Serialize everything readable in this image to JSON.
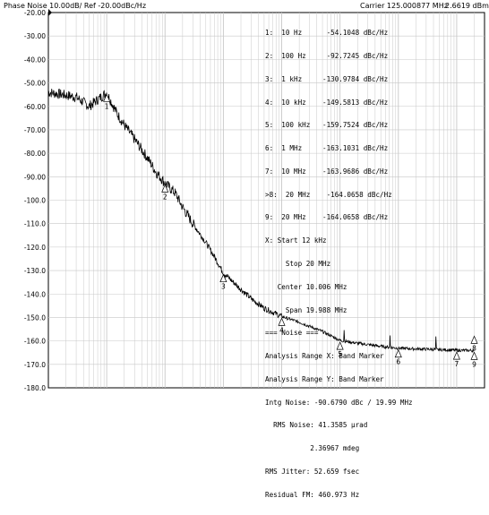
{
  "header": {
    "title": "Phase Noise 10.00dB/ Ref -20.00dBc/Hz",
    "carrier": "Carrier 125.000877 MHz",
    "power": "2.6619 dBm"
  },
  "marker_table": [
    "1:  10 Hz      -54.1048 dBc/Hz",
    "2:  100 Hz     -92.7245 dBc/Hz",
    "3:  1 kHz     -130.9784 dBc/Hz",
    "4:  10 kHz    -149.5813 dBc/Hz",
    "5:  100 kHz   -159.7524 dBc/Hz",
    "6:  1 MHz     -163.1031 dBc/Hz",
    "7:  10 MHz    -163.9686 dBc/Hz",
    ">8:  20 MHz    -164.0658 dBc/Hz",
    "9:  20 MHz    -164.0658 dBc/Hz",
    "X: Start 12 kHz",
    "     Stop 20 MHz",
    "   Center 10.006 MHz",
    "     Span 19.988 MHz",
    "=== Noise ===",
    "Analysis Range X: Band Marker",
    "Analysis Range Y: Band Marker",
    "Intg Noise: -90.6790 dBc / 19.99 MHz",
    "  RMS Noise: 41.3585 µrad",
    "           2.36967 mdeg",
    "RMS Jitter: 52.659 fsec",
    "Residual FM: 460.973 Hz"
  ],
  "chart_data": {
    "type": "line",
    "x_scale": "log",
    "x_range_hz": [
      1,
      30000000
    ],
    "ylim": [
      -180,
      -20
    ],
    "yticks": [
      "-20.00",
      "-30.00",
      "-40.00",
      "-50.00",
      "-60.00",
      "-70.00",
      "-80.00",
      "-90.00",
      "-100.0",
      "-110.0",
      "-120.0",
      "-130.0",
      "-140.0",
      "-150.0",
      "-160.0",
      "-170.0",
      "-180.0"
    ],
    "grid": true,
    "series": [
      {
        "values": [
          {
            "x": 1,
            "y": -54
          },
          {
            "x": 3,
            "y": -56
          },
          {
            "x": 5,
            "y": -60
          },
          {
            "x": 10,
            "y": -54.1
          },
          {
            "x": 15,
            "y": -63
          },
          {
            "x": 20,
            "y": -68
          },
          {
            "x": 30,
            "y": -74
          },
          {
            "x": 50,
            "y": -82
          },
          {
            "x": 70,
            "y": -88
          },
          {
            "x": 100,
            "y": -92.7
          },
          {
            "x": 150,
            "y": -97
          },
          {
            "x": 200,
            "y": -103
          },
          {
            "x": 300,
            "y": -110
          },
          {
            "x": 500,
            "y": -118
          },
          {
            "x": 700,
            "y": -124
          },
          {
            "x": 1000,
            "y": -131
          },
          {
            "x": 2000,
            "y": -138
          },
          {
            "x": 3000,
            "y": -142
          },
          {
            "x": 5000,
            "y": -146
          },
          {
            "x": 10000,
            "y": -149.6
          },
          {
            "x": 20000,
            "y": -152
          },
          {
            "x": 50000,
            "y": -156
          },
          {
            "x": 100000,
            "y": -159.8
          },
          {
            "x": 200000,
            "y": -161
          },
          {
            "x": 500000,
            "y": -162.3
          },
          {
            "x": 1000000,
            "y": -163.1
          },
          {
            "x": 2000000,
            "y": -163.4
          },
          {
            "x": 5000000,
            "y": -163.7
          },
          {
            "x": 10000000,
            "y": -164.0
          },
          {
            "x": 20000000,
            "y": -164.1
          }
        ]
      }
    ],
    "markers": [
      {
        "label": "1",
        "x": 10,
        "y": -54.1
      },
      {
        "label": "2",
        "x": 100,
        "y": -92.7
      },
      {
        "label": "3",
        "x": 1000,
        "y": -131.0
      },
      {
        "label": "4",
        "x": 10000,
        "y": -149.6
      },
      {
        "label": "5",
        "x": 100000,
        "y": -159.8
      },
      {
        "label": "6",
        "x": 1000000,
        "y": -163.1
      },
      {
        "label": "7",
        "x": 10000000,
        "y": -164.0
      },
      {
        "label": "8",
        "x": 20000000,
        "y": -164.1
      },
      {
        "label": "9",
        "x": 20000000,
        "y": -164.1
      }
    ],
    "colors": {
      "trace": "#000000",
      "grid": "#c8c8c8",
      "frame": "#000000",
      "marker": "#000000"
    }
  }
}
